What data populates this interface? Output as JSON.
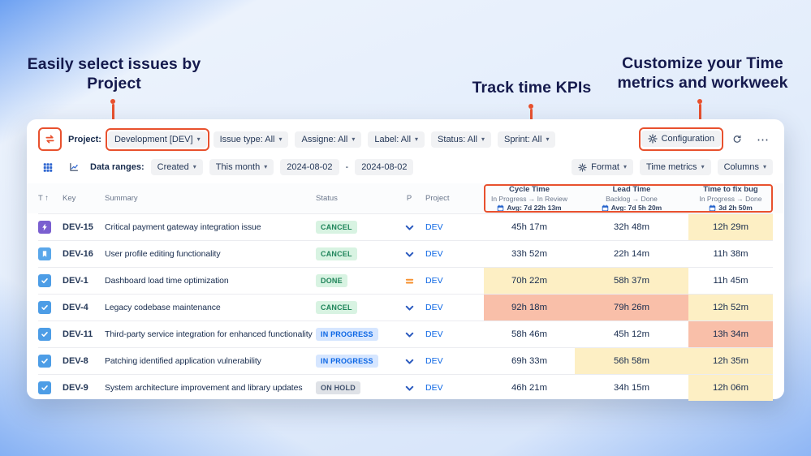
{
  "annotations": {
    "left": "Easily select issues by Project",
    "center": "Track time KPIs",
    "right": "Customize your Time metrics and workweek"
  },
  "accent": {
    "orange": "#e8512e"
  },
  "icons": {
    "app_logo": "sync-arrows-icon",
    "configuration": "gear-icon",
    "refresh": "refresh-icon",
    "more": "ellipsis-icon",
    "grid_view": "grid-view-icon",
    "chart_view": "chart-view-icon",
    "format": "gear-icon",
    "metric_avg": "calendar-icon",
    "dropdowns": "chevron-down-icon",
    "sort": "arrow-up-icon"
  },
  "toolbar": {
    "project_label": "Project:",
    "project_value": "Development [DEV]",
    "filters": [
      "Issue type: All",
      "Assigne: All",
      "Label: All",
      "Status: All",
      "Sprint: All"
    ],
    "configuration": "Configuration",
    "more": "⋯"
  },
  "datebar": {
    "label": "Data ranges:",
    "created": "Created",
    "period": "This month",
    "date_from": "2024-08-02",
    "date_sep": "-",
    "date_to": "2024-08-02",
    "format": "Format",
    "time_metrics": "Time metrics",
    "columns": "Columns"
  },
  "table": {
    "cols": {
      "type": "T",
      "sort_arrow": "↑",
      "key": "Key",
      "summary": "Summary",
      "status": "Status",
      "priority": "P",
      "project": "Project"
    },
    "metrics": [
      {
        "title": "Cycle Time",
        "range": "In Progress → In Review",
        "avg": "Avg: 7d 22h 13m"
      },
      {
        "title": "Lead Time",
        "range": "Backlog → Done",
        "avg": "Avg: 7d 5h 20m"
      },
      {
        "title": "Time to fix bug",
        "range": "In Progress → Done",
        "avg": "3d 2h 50m"
      }
    ],
    "rows": [
      {
        "type": "bolt",
        "key": "DEV-15",
        "summary": "Critical payment gateway integration issue",
        "status": "CANCEL",
        "status_color": "green",
        "priority": "low",
        "project": "DEV",
        "values": [
          {
            "v": "45h 17m",
            "hl": ""
          },
          {
            "v": "32h 48m",
            "hl": ""
          },
          {
            "v": "12h 29m",
            "hl": "yellow"
          }
        ]
      },
      {
        "type": "story",
        "key": "DEV-16",
        "summary": "User profile editing functionality",
        "status": "CANCEL",
        "status_color": "green",
        "priority": "low",
        "project": "DEV",
        "values": [
          {
            "v": "33h 52m",
            "hl": ""
          },
          {
            "v": "22h 14m",
            "hl": ""
          },
          {
            "v": "11h 38m",
            "hl": ""
          }
        ]
      },
      {
        "type": "task",
        "key": "DEV-1",
        "summary": "Dashboard load time optimization",
        "status": "DONE",
        "status_color": "green",
        "priority": "medium",
        "project": "DEV",
        "values": [
          {
            "v": "70h 22m",
            "hl": "yellow"
          },
          {
            "v": "58h 37m",
            "hl": "yellow"
          },
          {
            "v": "11h 45m",
            "hl": ""
          }
        ]
      },
      {
        "type": "task",
        "key": "DEV-4",
        "summary": "Legacy codebase maintenance",
        "status": "CANCEL",
        "status_color": "green",
        "priority": "low",
        "project": "DEV",
        "values": [
          {
            "v": "92h 18m",
            "hl": "red"
          },
          {
            "v": "79h 26m",
            "hl": "red"
          },
          {
            "v": "12h 52m",
            "hl": "yellow"
          }
        ]
      },
      {
        "type": "task",
        "key": "DEV-11",
        "summary": "Third-party service integration for enhanced functionality",
        "status": "IN PROGRESS",
        "status_color": "blue",
        "priority": "low",
        "project": "DEV",
        "values": [
          {
            "v": "58h 46m",
            "hl": ""
          },
          {
            "v": "45h 12m",
            "hl": ""
          },
          {
            "v": "13h 34m",
            "hl": "red"
          }
        ]
      },
      {
        "type": "task",
        "key": "DEV-8",
        "summary": "Patching identified application vulnerability",
        "status": "IN PROGRESS",
        "status_color": "blue",
        "priority": "low",
        "project": "DEV",
        "values": [
          {
            "v": "69h 33m",
            "hl": ""
          },
          {
            "v": "56h 58m",
            "hl": "yellow"
          },
          {
            "v": "12h 35m",
            "hl": "yellow"
          }
        ]
      },
      {
        "type": "task",
        "key": "DEV-9",
        "summary": "System architecture improvement and library updates",
        "status": "ON HOLD",
        "status_color": "gray",
        "priority": "low",
        "project": "DEV",
        "values": [
          {
            "v": "46h 21m",
            "hl": ""
          },
          {
            "v": "34h 15m",
            "hl": ""
          },
          {
            "v": "12h 06m",
            "hl": "yellow"
          }
        ]
      }
    ]
  }
}
